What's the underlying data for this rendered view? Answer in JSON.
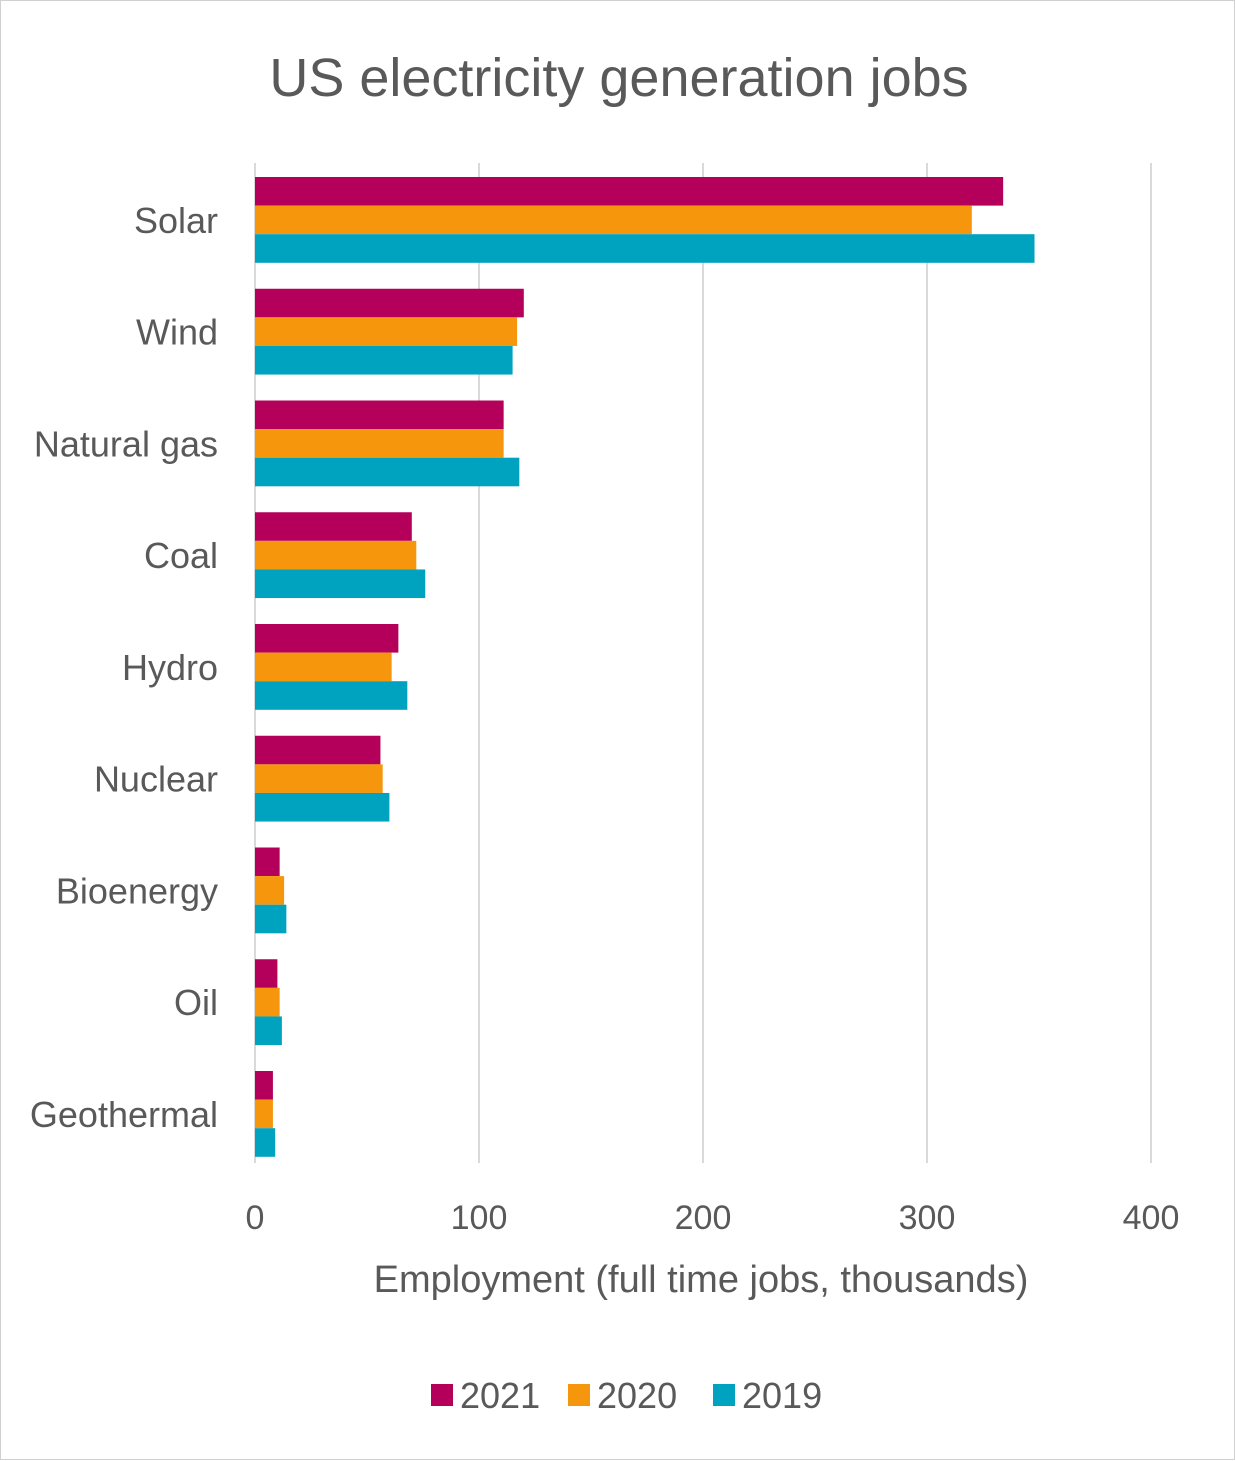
{
  "chart_data": {
    "type": "bar",
    "orientation": "horizontal",
    "title": "US electricity generation jobs",
    "xlabel": "Employment (full time jobs, thousands)",
    "ylabel": "",
    "xlim": [
      0,
      400
    ],
    "xticks": [
      "0",
      "100",
      "200",
      "300",
      "400"
    ],
    "grid": true,
    "legend_position": "bottom",
    "categories": [
      "Solar",
      "Wind",
      "Natural gas",
      "Coal",
      "Hydro",
      "Nuclear",
      "Bioenergy",
      "Oil",
      "Geothermal"
    ],
    "series": [
      {
        "name": "2021",
        "color": "#b5005b",
        "values": [
          334,
          120,
          111,
          70,
          64,
          56,
          11,
          10,
          8
        ]
      },
      {
        "name": "2020",
        "color": "#f5960c",
        "values": [
          320,
          117,
          111,
          72,
          61,
          57,
          13,
          11,
          8
        ]
      },
      {
        "name": "2019",
        "color": "#00a3bf",
        "values": [
          348,
          115,
          118,
          76,
          68,
          60,
          14,
          12,
          9
        ]
      }
    ]
  }
}
